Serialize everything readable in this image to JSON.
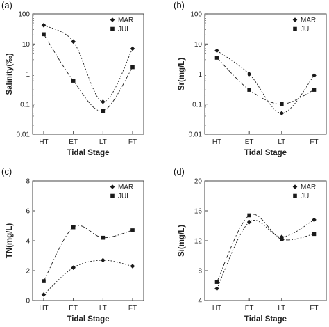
{
  "colors": {
    "axis": "#333333",
    "series": "#1a1a1a"
  },
  "chart_data": [
    {
      "type": "line",
      "panel_label": "(a)",
      "categories": [
        "HT",
        "ET",
        "LT",
        "FT"
      ],
      "xlabel": "Tidal Stage",
      "ylabel": "Salinity(‰)",
      "yscale": "log",
      "ylim": [
        0.01,
        100
      ],
      "yticks": [
        "0.01",
        "0.1",
        "1",
        "10",
        "100"
      ],
      "legend_position": "top-right",
      "series": [
        {
          "name": "MAR",
          "marker": "diamond",
          "line": "dotted",
          "values": [
            42,
            12,
            0.12,
            7
          ]
        },
        {
          "name": "JUL",
          "marker": "square",
          "line": "dash-dot",
          "values": [
            21,
            0.6,
            0.06,
            1.7
          ]
        }
      ]
    },
    {
      "type": "line",
      "panel_label": "(b)",
      "categories": [
        "HT",
        "ET",
        "LT",
        "FT"
      ],
      "xlabel": "Tidal Stage",
      "ylabel": "Sr(mg/L)",
      "yscale": "log",
      "ylim": [
        0.01,
        100
      ],
      "yticks": [
        "0.01",
        "0.1",
        "1",
        "10",
        "100"
      ],
      "legend_position": "top-right",
      "series": [
        {
          "name": "MAR",
          "marker": "diamond",
          "line": "dotted",
          "values": [
            6,
            1,
            0.05,
            0.9
          ]
        },
        {
          "name": "JUL",
          "marker": "square",
          "line": "dash-dot",
          "values": [
            3.5,
            0.3,
            0.1,
            0.3
          ]
        }
      ]
    },
    {
      "type": "line",
      "panel_label": "(c)",
      "categories": [
        "HT",
        "ET",
        "LT",
        "FT"
      ],
      "xlabel": "Tidal Stage",
      "ylabel": "TN(mg/L)",
      "yscale": "linear",
      "ylim": [
        0,
        8
      ],
      "yticks": [
        "0",
        "2",
        "4",
        "6",
        "8"
      ],
      "legend_position": "top-right",
      "series": [
        {
          "name": "MAR",
          "marker": "diamond",
          "line": "dotted",
          "values": [
            0.4,
            2.2,
            2.7,
            2.3
          ]
        },
        {
          "name": "JUL",
          "marker": "square",
          "line": "dash-dot",
          "values": [
            1.3,
            4.9,
            4.2,
            4.7
          ]
        }
      ]
    },
    {
      "type": "line",
      "panel_label": "(d)",
      "categories": [
        "HT",
        "ET",
        "LT",
        "FT"
      ],
      "xlabel": "Tidal Stage",
      "ylabel": "Si(mg/L)",
      "yscale": "linear",
      "ylim": [
        4,
        20
      ],
      "yticks": [
        "4",
        "8",
        "12",
        "16",
        "20"
      ],
      "legend_position": "top-right",
      "series": [
        {
          "name": "MAR",
          "marker": "diamond",
          "line": "dotted",
          "values": [
            5.6,
            14.5,
            12.5,
            14.8
          ]
        },
        {
          "name": "JUL",
          "marker": "square",
          "line": "dash-dot",
          "values": [
            6.5,
            15.4,
            12.2,
            12.9
          ]
        }
      ]
    }
  ]
}
